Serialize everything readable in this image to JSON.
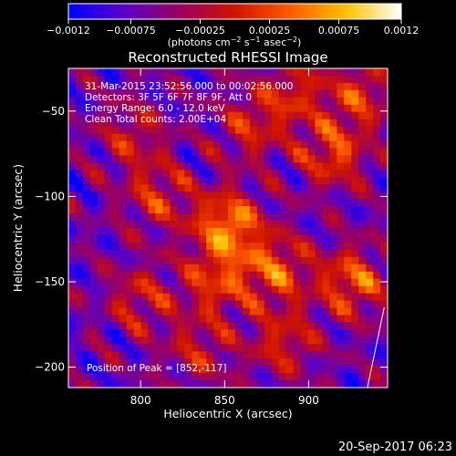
{
  "chart_data": {
    "type": "heatmap",
    "title": "Reconstructed RHESSI Image",
    "xlabel": "Heliocentric X (arcsec)",
    "ylabel": "Heliocentric Y (arcsec)",
    "xlim": [
      757,
      947
    ],
    "ylim": [
      -212,
      -25
    ],
    "x_ticks": [
      "800",
      "850",
      "900"
    ],
    "x_tick_values": [
      800,
      850,
      900
    ],
    "y_ticks": [
      "−50",
      "−100",
      "−150",
      "−200"
    ],
    "y_tick_values": [
      -50,
      -100,
      -150,
      -200
    ],
    "colorbar": {
      "ticks": [
        "−0.0012",
        "−0.00075",
        "−0.00025",
        "0.00025",
        "0.00075",
        "0.0012"
      ],
      "tick_values": [
        -0.0012,
        -0.00075,
        -0.00025,
        0.00025,
        0.00075,
        0.0012
      ],
      "range": [
        -0.0012,
        0.0012
      ],
      "units_prefix": "(photons cm",
      "units_exp1": "−2",
      "units_mid": " s",
      "units_exp2": "−1",
      "units_mid2": " asec",
      "units_exp3": "−2",
      "units_suffix": ")",
      "colors": [
        "#0000ff",
        "#5a00c8",
        "#9a0060",
        "#d01400",
        "#ff5a00",
        "#ffc000",
        "#ffffff"
      ]
    },
    "annotations": [
      "31-Mar-2015 23:52:56.000 to 00:02:56.000",
      "Detectors: 3F 5F 6F 7F 8F 9F, Att 0",
      "Energy Range: 6.0 - 12.0 keV",
      "Clean     Total counts: 2.00E+04"
    ],
    "peak_label": "Position of Peak = [852,-117]",
    "peak": [
      852,
      -117
    ],
    "blobs": [
      {
        "x": 852,
        "y": -117,
        "amp": 1.0
      },
      {
        "x": 845,
        "y": -150,
        "amp": 0.65
      },
      {
        "x": 880,
        "y": -143,
        "amp": 0.75
      },
      {
        "x": 926,
        "y": -150,
        "amp": 0.8
      },
      {
        "x": 915,
        "y": -75,
        "amp": 0.7
      },
      {
        "x": 930,
        "y": -40,
        "amp": 0.6
      },
      {
        "x": 890,
        "y": -40,
        "amp": 0.55
      },
      {
        "x": 865,
        "y": -60,
        "amp": 0.5
      },
      {
        "x": 810,
        "y": -100,
        "amp": 0.55
      },
      {
        "x": 800,
        "y": -160,
        "amp": 0.5
      },
      {
        "x": 795,
        "y": -65,
        "amp": 0.45
      },
      {
        "x": 885,
        "y": -185,
        "amp": 0.55
      },
      {
        "x": 835,
        "y": -190,
        "amp": 0.45
      }
    ]
  },
  "footer": {
    "date_stamp": "20-Sep-2017 06:23"
  }
}
